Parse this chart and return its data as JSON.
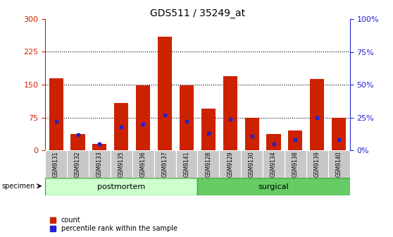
{
  "title": "GDS511 / 35249_at",
  "samples": [
    "GSM9131",
    "GSM9132",
    "GSM9133",
    "GSM9135",
    "GSM9136",
    "GSM9137",
    "GSM9141",
    "GSM9128",
    "GSM9129",
    "GSM9130",
    "GSM9134",
    "GSM9138",
    "GSM9139",
    "GSM9140"
  ],
  "counts": [
    165,
    38,
    15,
    108,
    148,
    260,
    148,
    95,
    170,
    75,
    38,
    45,
    163,
    75
  ],
  "percentiles": [
    22,
    12,
    5,
    18,
    20,
    27,
    22,
    13,
    24,
    11,
    5,
    8,
    25,
    8
  ],
  "groups": [
    {
      "label": "postmortem",
      "start": 0,
      "end": 7,
      "color": "#ccffcc"
    },
    {
      "label": "surgical",
      "start": 7,
      "end": 14,
      "color": "#66cc66"
    }
  ],
  "bar_color": "#cc2200",
  "marker_color": "#2222cc",
  "left_ylim": [
    0,
    300
  ],
  "left_yticks": [
    0,
    75,
    150,
    225,
    300
  ],
  "left_ylabel_color": "#cc2200",
  "right_ylim": [
    0,
    100
  ],
  "right_yticks": [
    0,
    25,
    50,
    75,
    100
  ],
  "right_ylabel_color": "#2222cc",
  "grid_color": "black",
  "specimen_label": "specimen",
  "legend_count": "count",
  "legend_percentile": "percentile rank within the sample"
}
